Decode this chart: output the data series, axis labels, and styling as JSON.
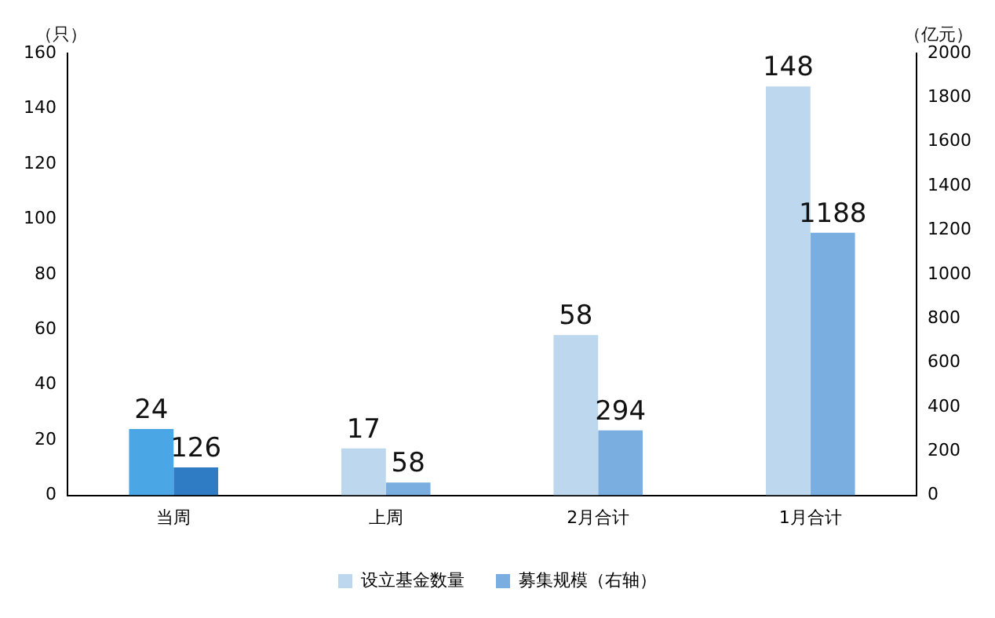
{
  "chart_data": {
    "type": "bar",
    "categories": [
      "当周",
      "上周",
      "2月合计",
      "1月合计"
    ],
    "ylabel": "（只）",
    "y2label": "（亿元）",
    "series": [
      {
        "name": "设立基金数量",
        "color": "#bdd7ee",
        "colors": [
          "#4ba6e6",
          "#bdd7ee",
          "#bdd7ee",
          "#bdd7ee"
        ],
        "values": [
          24,
          17,
          58,
          148
        ]
      },
      {
        "name": "募集规模（右轴）",
        "color": "#7aaee0",
        "colors": [
          "#2f7cc4",
          "#7aaee0",
          "#7aaee0",
          "#7aaee0"
        ],
        "values": [
          126,
          58,
          294,
          1188
        ],
        "axis": "y2"
      }
    ],
    "ylim": [
      0,
      160
    ],
    "yticks": [
      0,
      20,
      40,
      60,
      80,
      100,
      120,
      140,
      160
    ],
    "y2lim": [
      0,
      2000
    ],
    "y2ticks": [
      0,
      200,
      400,
      600,
      800,
      1000,
      1200,
      1400,
      1600,
      1800,
      2000
    ],
    "data_labels": true,
    "legend": "bottom",
    "grid": false
  }
}
